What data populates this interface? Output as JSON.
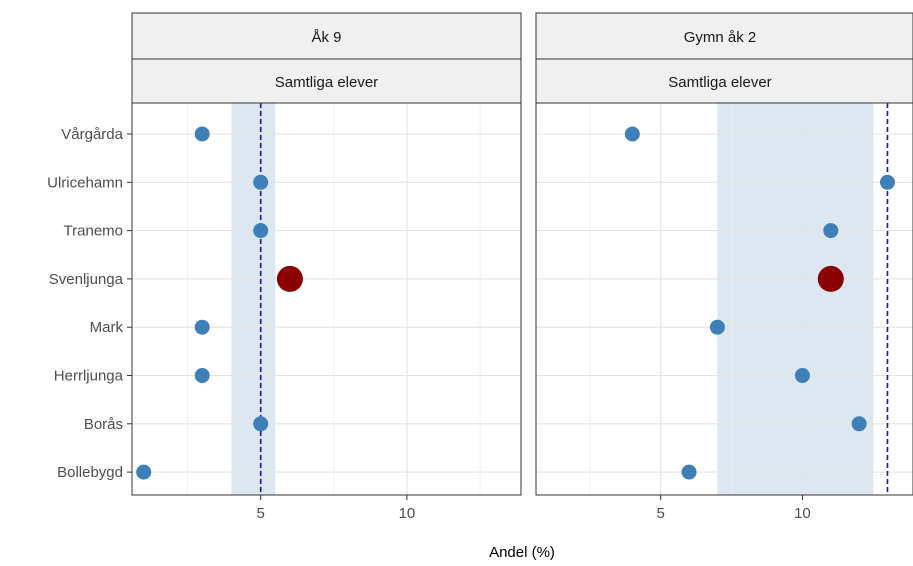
{
  "chart_data": {
    "type": "scatter",
    "xlabel": "Andel (%)",
    "ylabel": "",
    "categories": [
      "Vårgårda",
      "Ulricehamn",
      "Tranemo",
      "Svenljunga",
      "Mark",
      "Herrljunga",
      "Borås",
      "Bollebygd"
    ],
    "highlight": "Svenljunga",
    "xlim": [
      0.6,
      13.9
    ],
    "xticks": [
      5,
      10
    ],
    "grid": true,
    "colors": {
      "point": "#3d7fb6",
      "highlight": "#8b0000",
      "band": "#dce7f1",
      "reference_line": "#1515a8",
      "strip_fill": "#f0f0f0"
    },
    "panels": [
      {
        "strip_top": "Åk 9",
        "strip_bottom": "Samtliga elever",
        "values": [
          3,
          5,
          5,
          6,
          3,
          3,
          5,
          1
        ],
        "band": [
          4,
          5.5
        ],
        "reference_line": 5
      },
      {
        "strip_top": "Gymn åk 2",
        "strip_bottom": "Samtliga elever",
        "values": [
          4,
          13,
          11,
          11,
          7,
          10,
          12,
          6
        ],
        "band": [
          7,
          12.5
        ],
        "reference_line": 13
      }
    ]
  }
}
